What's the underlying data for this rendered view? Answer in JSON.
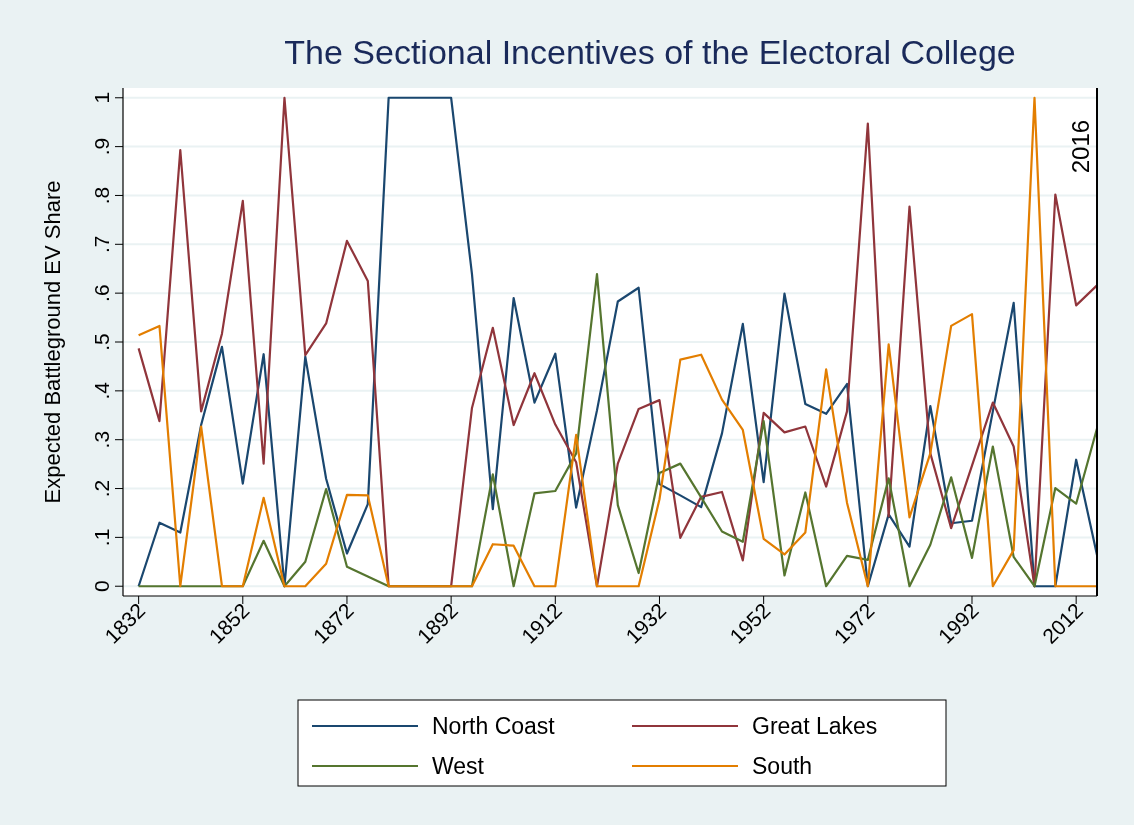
{
  "chart_data": {
    "type": "line",
    "title": "The Sectional Incentives of the Electoral College",
    "ylabel": "Expected Battleground EV Share",
    "x": [
      1832,
      1836,
      1840,
      1844,
      1848,
      1852,
      1856,
      1860,
      1864,
      1868,
      1872,
      1876,
      1880,
      1884,
      1888,
      1892,
      1896,
      1900,
      1904,
      1908,
      1912,
      1916,
      1920,
      1924,
      1928,
      1932,
      1936,
      1940,
      1944,
      1948,
      1952,
      1956,
      1960,
      1964,
      1968,
      1972,
      1976,
      1980,
      1984,
      1988,
      1992,
      1996,
      2000,
      2004,
      2008,
      2012,
      2016
    ],
    "series": [
      {
        "name": "North Coast",
        "color": "#1a476f",
        "values": [
          0,
          0.13,
          0.11,
          0.33,
          0.49,
          0.21,
          0.475,
          0,
          0.47,
          0.22,
          0.067,
          0.168,
          1,
          1,
          1,
          1,
          0.639,
          0.158,
          0.59,
          0.376,
          0.476,
          0.161,
          0.36,
          0.583,
          0.611,
          0.209,
          0.186,
          0.162,
          0.313,
          0.537,
          0.213,
          0.599,
          0.373,
          0.353,
          0.414,
          0,
          0.147,
          0.081,
          0.369,
          0.129,
          0.134,
          0.358,
          0.58,
          0,
          0,
          0.259,
          0.064
        ]
      },
      {
        "name": "Great Lakes",
        "color": "#90353b",
        "values": [
          0.487,
          0.338,
          0.893,
          0.358,
          0.517,
          0.789,
          0.251,
          1,
          0.473,
          0.538,
          0.707,
          0.625,
          0,
          0,
          0,
          0,
          0.365,
          0.529,
          0.33,
          0.436,
          0.331,
          0.254,
          0,
          0.251,
          0.363,
          0.381,
          0.099,
          0.183,
          0.193,
          0.053,
          0.355,
          0.315,
          0.327,
          0.204,
          0.358,
          0.947,
          0.143,
          0.777,
          0.272,
          0.119,
          0.247,
          0.376,
          0.286,
          0,
          0.802,
          0.575,
          0.616
        ]
      },
      {
        "name": "West",
        "color": "#55752f",
        "values": [
          0,
          0,
          0,
          0,
          0,
          0,
          0.093,
          0,
          0.05,
          0.199,
          0.04,
          0.02,
          0,
          0,
          0,
          0,
          0,
          0.229,
          0,
          0.19,
          0.195,
          0.272,
          0.639,
          0.166,
          0.027,
          0.232,
          0.251,
          0.182,
          0.112,
          0.091,
          0.338,
          0.022,
          0.192,
          0,
          0.062,
          0.054,
          0.221,
          0,
          0.085,
          0.223,
          0.058,
          0.286,
          0.06,
          0,
          0.201,
          0.169,
          0.323
        ]
      },
      {
        "name": "South",
        "color": "#e37e00",
        "values": [
          0.514,
          0.533,
          0,
          0.327,
          0,
          0,
          0.181,
          0,
          0,
          0.046,
          0.187,
          0.186,
          0,
          0,
          0,
          0,
          0,
          0.086,
          0.083,
          0,
          0,
          0.31,
          0,
          0,
          0,
          0.178,
          0.464,
          0.474,
          0.382,
          0.32,
          0.097,
          0.065,
          0.11,
          0.444,
          0.171,
          0,
          0.495,
          0.141,
          0.272,
          0.533,
          0.557,
          0,
          0.074,
          1,
          0,
          0,
          0
        ]
      }
    ],
    "xlim": [
      1829,
      2016
    ],
    "xticks": [
      1832,
      1852,
      1872,
      1892,
      1912,
      1932,
      1952,
      1972,
      1992,
      2012
    ],
    "ylim": [
      -0.02,
      1.02
    ],
    "yticks": [
      {
        "value": 0,
        "label": "0"
      },
      {
        "value": 0.1,
        "label": ".1"
      },
      {
        "value": 0.2,
        "label": ".2"
      },
      {
        "value": 0.3,
        "label": ".3"
      },
      {
        "value": 0.4,
        "label": ".4"
      },
      {
        "value": 0.5,
        "label": ".5"
      },
      {
        "value": 0.6,
        "label": ".6"
      },
      {
        "value": 0.7,
        "label": ".7"
      },
      {
        "value": 0.8,
        "label": ".8"
      },
      {
        "value": 0.9,
        "label": ".9"
      },
      {
        "value": 1,
        "label": "1"
      }
    ],
    "ref_lines": [
      {
        "axis": "x",
        "value": 2016,
        "label": "2016",
        "color": "#000000"
      }
    ],
    "grid": "y",
    "legend": "bottom",
    "marker": "none",
    "line_style": "solid"
  }
}
